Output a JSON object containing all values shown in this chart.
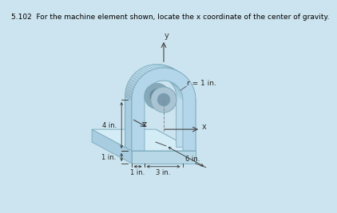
{
  "title": "5.102  For the machine element shown, locate the x coordinate of the center of gravity.",
  "title_fontsize": 6.5,
  "bg_color": "#cce4ef",
  "labels": {
    "y_axis": "y",
    "x_axis": "x",
    "z_axis": "z",
    "r": "r = 1 in.",
    "dim_4": "4 in.",
    "dim_1a": "1 in.",
    "dim_1b": "1 in.",
    "dim_3": "3 in.",
    "dim_6": "6 in."
  },
  "scale": 16,
  "ox": 155,
  "oy": 195,
  "zx": -0.52,
  "zy": -0.28
}
